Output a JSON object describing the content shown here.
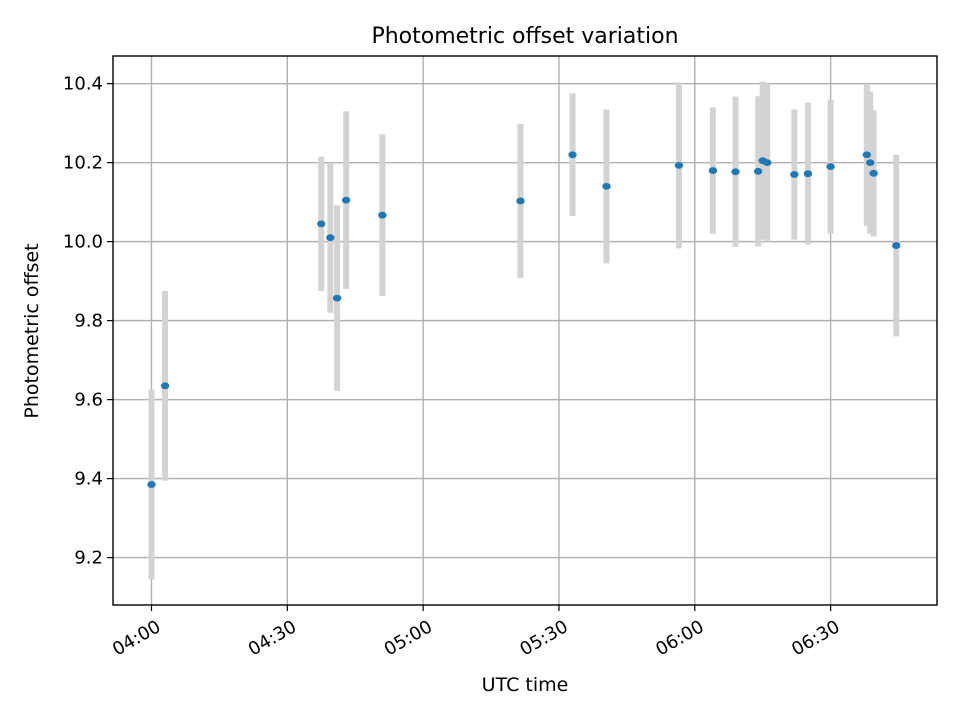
{
  "chart_data": {
    "type": "scatter",
    "title": "Photometric offset variation",
    "xlabel": "UTC time",
    "ylabel": "Photometric offset",
    "x_tick_labels": [
      "04:00",
      "04:30",
      "05:00",
      "05:30",
      "06:00",
      "06:30"
    ],
    "y_tick_labels": [
      "9.2",
      "9.4",
      "9.6",
      "9.8",
      "10.0",
      "10.2",
      "10.4"
    ],
    "y_ticks": [
      9.2,
      9.4,
      9.6,
      9.8,
      10.0,
      10.2,
      10.4
    ],
    "xlim": [
      "03:51:30",
      "06:53:30"
    ],
    "ylim": [
      9.08,
      10.47
    ],
    "grid": true,
    "colors": {
      "point": "#1f77b4",
      "errorbar": "#d3d3d3",
      "grid": "#b0b0b0"
    },
    "points": [
      {
        "x": "04:00:00",
        "y": 9.385,
        "err": 0.24
      },
      {
        "x": "04:03:00",
        "y": 9.635,
        "err": 0.24
      },
      {
        "x": "04:37:30",
        "y": 10.045,
        "err": 0.17
      },
      {
        "x": "04:39:30",
        "y": 10.01,
        "err": 0.19
      },
      {
        "x": "04:41:00",
        "y": 9.857,
        "err": 0.235
      },
      {
        "x": "04:43:00",
        "y": 10.105,
        "err": 0.225
      },
      {
        "x": "04:51:00",
        "y": 10.067,
        "err": 0.205
      },
      {
        "x": "05:21:30",
        "y": 10.103,
        "err": 0.195
      },
      {
        "x": "05:33:00",
        "y": 10.22,
        "err": 0.155
      },
      {
        "x": "05:40:30",
        "y": 10.14,
        "err": 0.195
      },
      {
        "x": "05:56:30",
        "y": 10.193,
        "err": 0.21
      },
      {
        "x": "06:04:00",
        "y": 10.18,
        "err": 0.16
      },
      {
        "x": "06:09:00",
        "y": 10.177,
        "err": 0.19
      },
      {
        "x": "06:14:00",
        "y": 10.178,
        "err": 0.19
      },
      {
        "x": "06:15:00",
        "y": 10.205,
        "err": 0.2
      },
      {
        "x": "06:16:00",
        "y": 10.2,
        "err": 0.2
      },
      {
        "x": "06:22:00",
        "y": 10.17,
        "err": 0.165
      },
      {
        "x": "06:25:00",
        "y": 10.172,
        "err": 0.18
      },
      {
        "x": "06:30:00",
        "y": 10.19,
        "err": 0.17
      },
      {
        "x": "06:38:00",
        "y": 10.22,
        "err": 0.18
      },
      {
        "x": "06:38:45",
        "y": 10.2,
        "err": 0.18
      },
      {
        "x": "06:39:30",
        "y": 10.173,
        "err": 0.16
      },
      {
        "x": "06:44:30",
        "y": 9.99,
        "err": 0.23
      }
    ]
  }
}
